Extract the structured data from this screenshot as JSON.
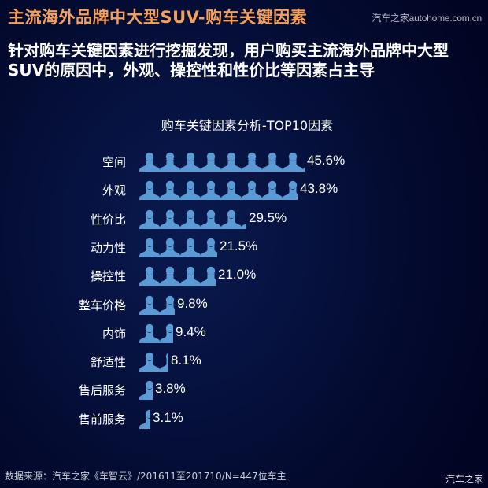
{
  "header": {
    "title": "主流海外品牌中大型SUV-购车关键因素",
    "watermark": "汽车之家autohome.com.cn"
  },
  "subtitle": "针对购车关键因素进行挖掘发现，用户购买主流海外品牌中大型SUV的原因中，外观、操控性和性价比等因素占主导",
  "footer": {
    "source": "数据来源：汽车之家《车智云》/201611至201710/N=447位车主",
    "watermark": "汽车之家"
  },
  "colors": {
    "title": "#f5a05a",
    "bar": "#5b9bd5",
    "background": "#030a2e"
  },
  "chart_data": {
    "type": "bar",
    "orientation": "horizontal",
    "style": "pictograph-person-icons",
    "title": "购车关键因素分析-TOP10因素",
    "xlabel": "",
    "ylabel": "",
    "grid": false,
    "legend": null,
    "unit": "%",
    "categories": [
      "空间",
      "外观",
      "性价比",
      "动力性",
      "操控性",
      "整车价格",
      "内饰",
      "舒适性",
      "售后服务",
      "售前服务"
    ],
    "values": [
      45.6,
      43.8,
      29.5,
      21.5,
      21.0,
      9.8,
      9.4,
      8.1,
      3.8,
      3.1
    ],
    "labels": [
      "45.6%",
      "43.8%",
      "29.5%",
      "21.5%",
      "21.0%",
      "9.8%",
      "9.4%",
      "8.1%",
      "3.8%",
      "3.1%"
    ]
  }
}
